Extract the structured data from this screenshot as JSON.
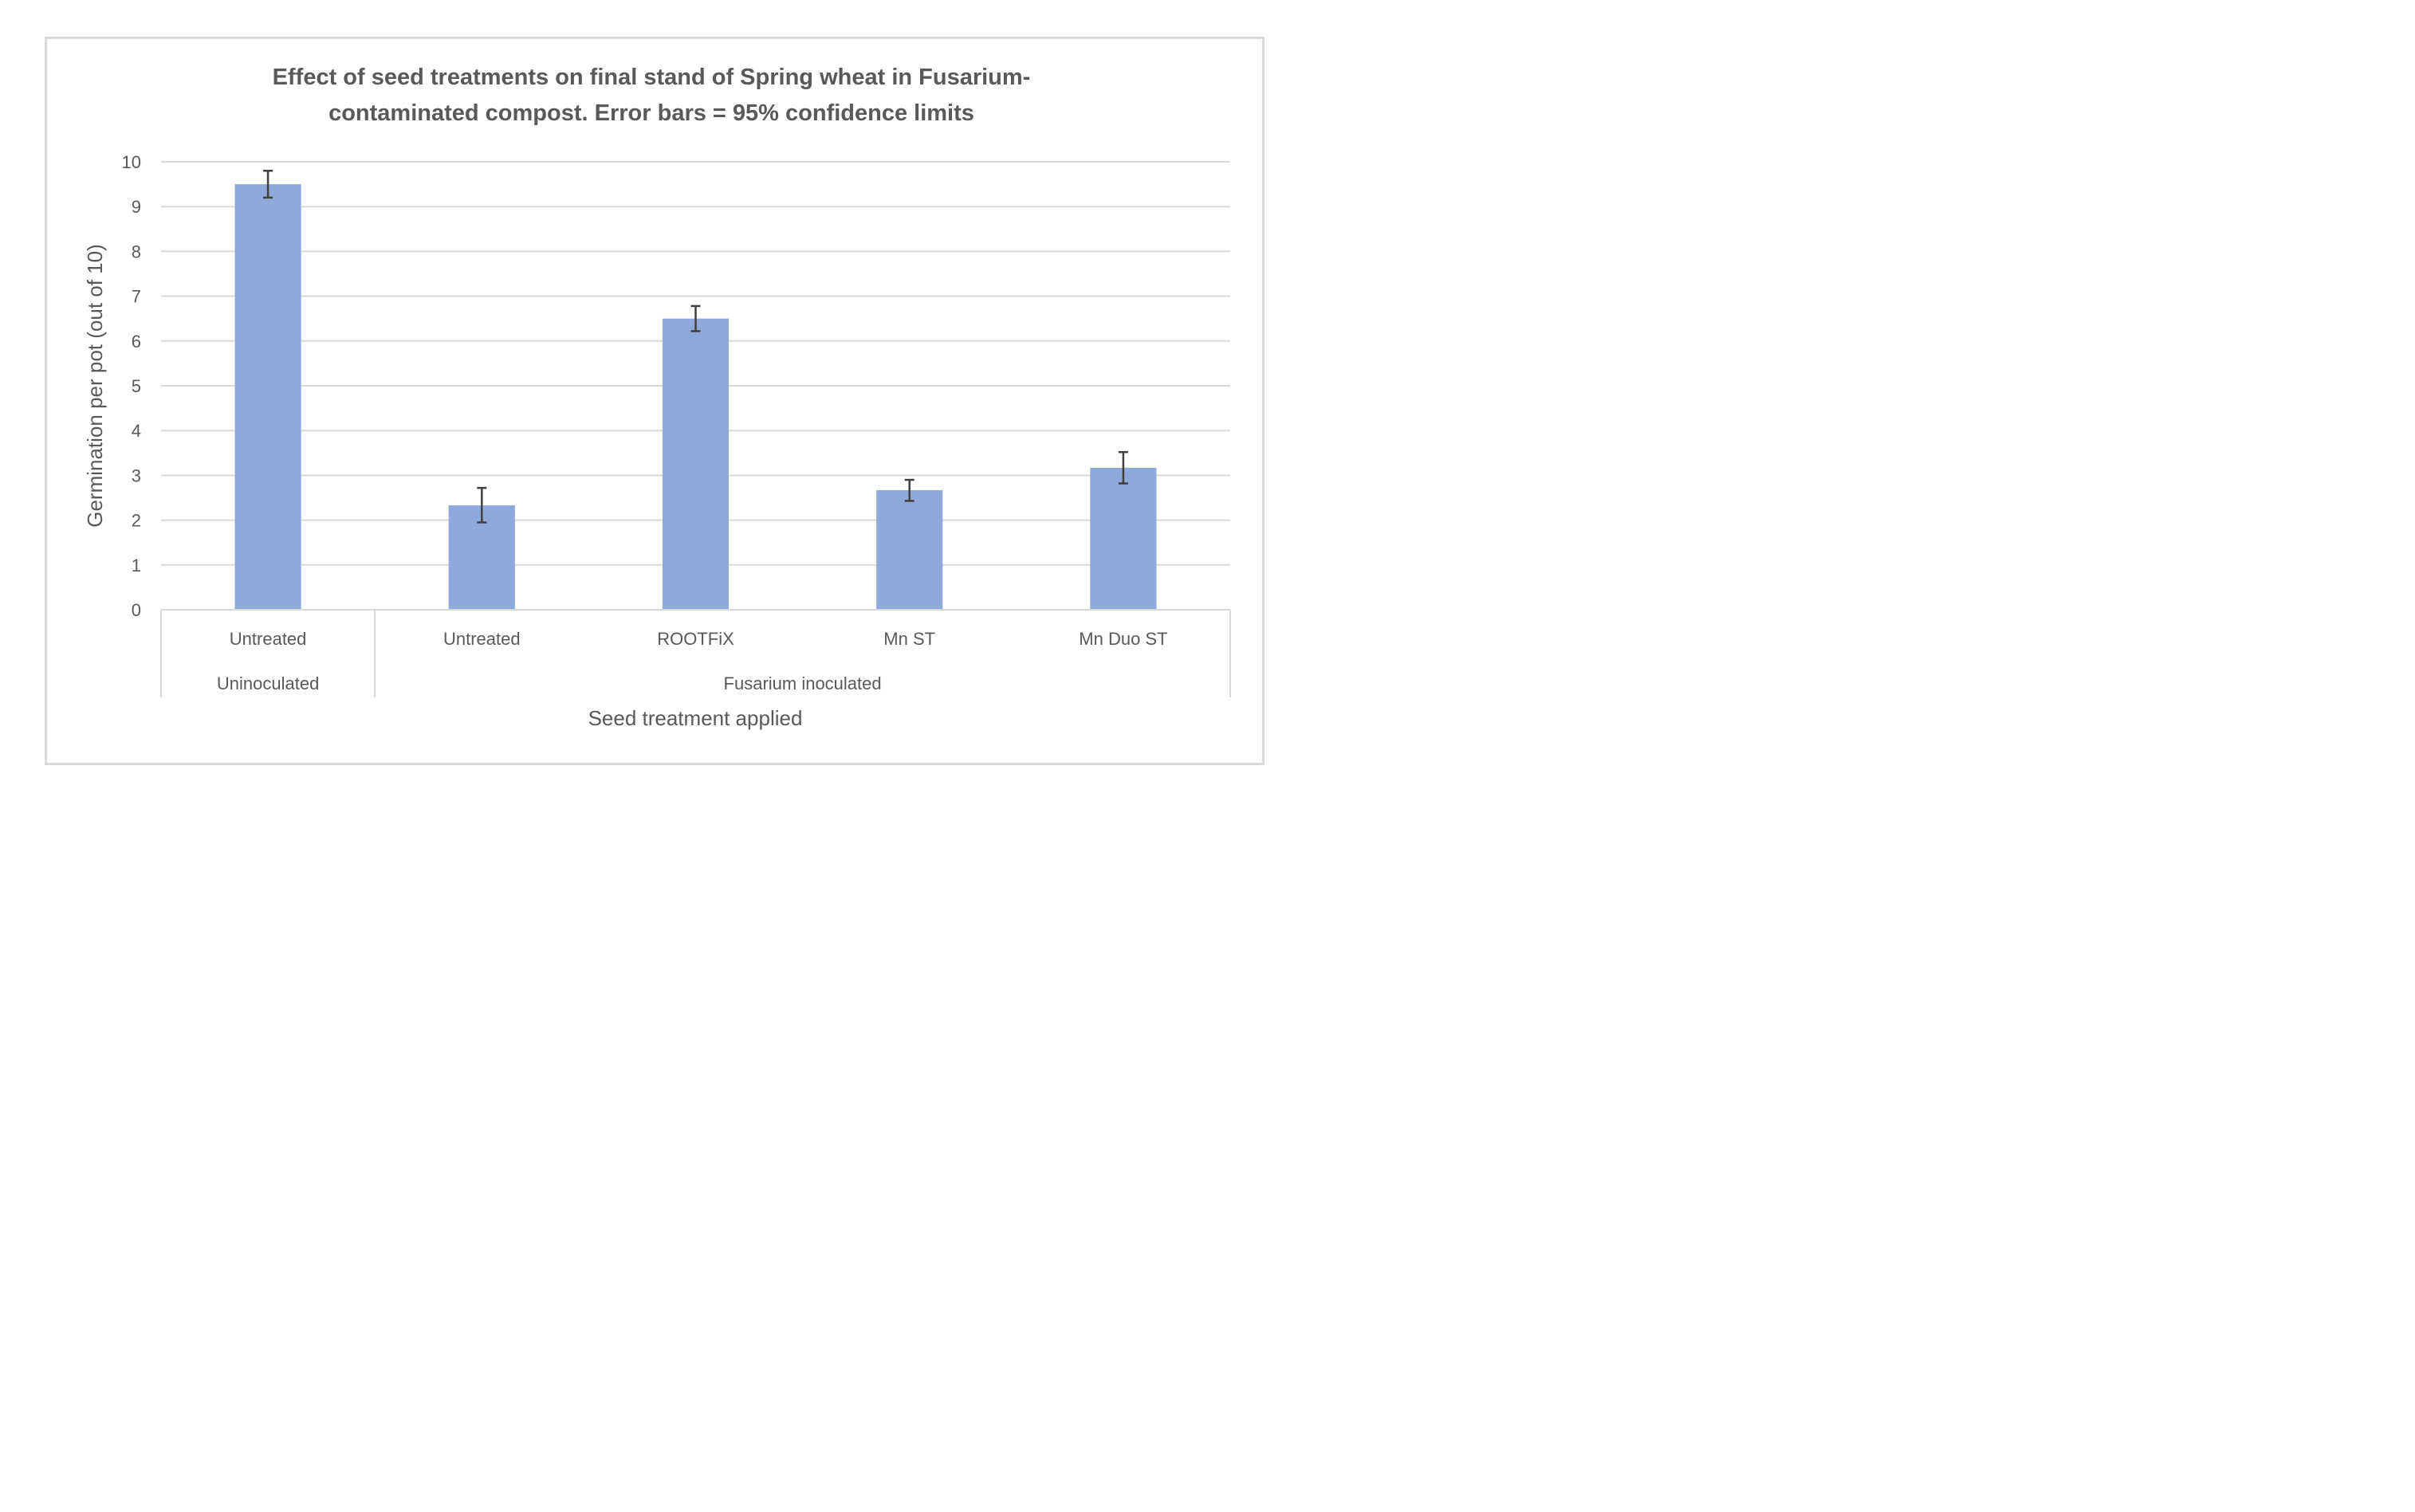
{
  "chart_data": {
    "type": "bar",
    "title": "Effect of seed treatments on final stand of Spring wheat in Fusarium-contaminated compost.  Error bars = 95% confidence limits",
    "title_lines": [
      "Effect of seed treatments on final stand of Spring wheat in Fusarium-",
      "contaminated compost.  Error bars = 95% confidence limits"
    ],
    "xlabel": "Seed treatment applied",
    "ylabel": "Germination per pot (out of 10)",
    "ylim": [
      0,
      10
    ],
    "yticks": [
      "0",
      "1",
      "2",
      "3",
      "4",
      "5",
      "6",
      "7",
      "8",
      "9",
      "10"
    ],
    "categories": [
      "Untreated",
      "Untreated",
      "ROOTFiX",
      "Mn ST",
      "Mn Duo ST"
    ],
    "groups": [
      {
        "label": "Uninoculated",
        "span": 1
      },
      {
        "label": "Fusarium inoculated",
        "span": 4
      }
    ],
    "values": [
      9.5,
      2.33,
      6.5,
      2.67,
      3.17
    ],
    "error_low": [
      9.2,
      1.95,
      6.22,
      2.43,
      2.82
    ],
    "error_high": [
      9.8,
      2.72,
      6.78,
      2.9,
      3.52
    ],
    "grid": true,
    "colors": {
      "bar": "#8eaadb",
      "gridline": "#d9d9d9",
      "error_bar": "#404040",
      "text": "#595959",
      "frame": "#d9d9d9"
    }
  }
}
